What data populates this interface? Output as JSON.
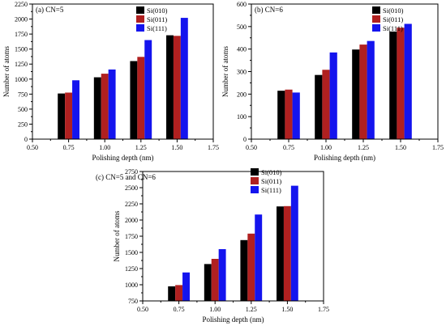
{
  "colors": {
    "s010": "#000000",
    "s011": "#b02020",
    "s111": "#1414ee",
    "frame": "#000000"
  },
  "chart_data": [
    {
      "type": "bar",
      "title": "(a) CN=5",
      "xlabel": "Polishing depth (nm)",
      "ylabel": "Number of atoms",
      "categories": [
        "0.75",
        "1.00",
        "1.25",
        "1.50"
      ],
      "x": [
        0.75,
        1.0,
        1.25,
        1.5
      ],
      "xlim": [
        0.5,
        1.75
      ],
      "xticks": [
        "0.50",
        "0.75",
        "1.00",
        "1.25",
        "1.50",
        "1.75"
      ],
      "ylim": [
        0,
        2250
      ],
      "yticks": [
        0,
        250,
        500,
        750,
        1000,
        1250,
        1500,
        1750,
        2000,
        2250
      ],
      "legend_position": "top-right",
      "series": [
        {
          "name": "Si(010)",
          "color": "#000000",
          "values": [
            760,
            1030,
            1300,
            1730
          ]
        },
        {
          "name": "Si(011)",
          "color": "#b02020",
          "values": [
            775,
            1090,
            1370,
            1720
          ]
        },
        {
          "name": "Si(111)",
          "color": "#1414ee",
          "values": [
            980,
            1160,
            1650,
            2020
          ]
        }
      ]
    },
    {
      "type": "bar",
      "title": "(b) CN=6",
      "xlabel": "Polishing depth (nm)",
      "ylabel": "Number of atoms",
      "categories": [
        "0.75",
        "1.00",
        "1.25",
        "1.50"
      ],
      "x": [
        0.75,
        1.0,
        1.25,
        1.5
      ],
      "xlim": [
        0.5,
        1.75
      ],
      "xticks": [
        "0.50",
        "0.75",
        "1.00",
        "1.25",
        "1.50",
        "1.75"
      ],
      "ylim": [
        0,
        600
      ],
      "yticks": [
        0,
        100,
        200,
        300,
        400,
        500,
        600
      ],
      "legend_position": "top-right",
      "series": [
        {
          "name": "Si(010)",
          "color": "#000000",
          "values": [
            215,
            285,
            398,
            478
          ]
        },
        {
          "name": "Si(011)",
          "color": "#b02020",
          "values": [
            220,
            308,
            420,
            495
          ]
        },
        {
          "name": "Si(111)",
          "color": "#1414ee",
          "values": [
            207,
            385,
            436,
            512
          ]
        }
      ]
    },
    {
      "type": "bar",
      "title": "(c) CN=5 and CN=6",
      "xlabel": "Polishing depth (nm)",
      "ylabel": "Number of atoms",
      "categories": [
        "0.75",
        "1.00",
        "1.25",
        "1.50"
      ],
      "x": [
        0.75,
        1.0,
        1.25,
        1.5
      ],
      "xlim": [
        0.5,
        1.75
      ],
      "xticks": [
        "0.50",
        "0.75",
        "1.00",
        "1.25",
        "1.50",
        "1.75"
      ],
      "ylim": [
        750,
        2750
      ],
      "yticks": [
        750,
        1000,
        1250,
        1500,
        1750,
        2000,
        2250,
        2500,
        2750
      ],
      "legend_position": "top-left",
      "series": [
        {
          "name": "Si(010)",
          "color": "#000000",
          "values": [
            975,
            1320,
            1690,
            2210
          ]
        },
        {
          "name": "Si(011)",
          "color": "#b02020",
          "values": [
            995,
            1400,
            1790,
            2215
          ]
        },
        {
          "name": "Si(111)",
          "color": "#1414ee",
          "values": [
            1190,
            1550,
            2085,
            2530
          ]
        }
      ]
    }
  ]
}
